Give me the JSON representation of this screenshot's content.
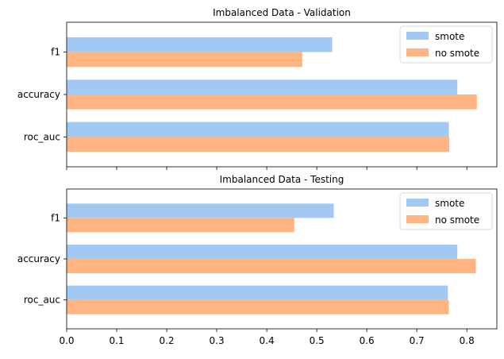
{
  "chart_data": [
    {
      "type": "bar",
      "orientation": "horizontal",
      "title": "Imbalanced Data - Validation",
      "categories": [
        "f1",
        "accuracy",
        "roc_auc"
      ],
      "series": [
        {
          "name": "smote",
          "values": [
            0.531,
            0.781,
            0.764
          ],
          "color": "#a1c9f4"
        },
        {
          "name": "no smote",
          "values": [
            0.471,
            0.82,
            0.765
          ],
          "color": "#ffb482"
        }
      ],
      "xlim": [
        0,
        0.86
      ],
      "xticks": [
        0.0,
        0.1,
        0.2,
        0.3,
        0.4,
        0.5,
        0.6,
        0.7,
        0.8
      ],
      "xtick_labels_visible": false,
      "legend": "top-right",
      "grid": false
    },
    {
      "type": "bar",
      "orientation": "horizontal",
      "title": "Imbalanced Data - Testing",
      "categories": [
        "f1",
        "accuracy",
        "roc_auc"
      ],
      "series": [
        {
          "name": "smote",
          "values": [
            0.534,
            0.781,
            0.762
          ],
          "color": "#a1c9f4"
        },
        {
          "name": "no smote",
          "values": [
            0.455,
            0.818,
            0.764
          ],
          "color": "#ffb482"
        }
      ],
      "xlim": [
        0,
        0.86
      ],
      "xticks": [
        0.0,
        0.1,
        0.2,
        0.3,
        0.4,
        0.5,
        0.6,
        0.7,
        0.8
      ],
      "xtick_labels": [
        "0.0",
        "0.1",
        "0.2",
        "0.3",
        "0.4",
        "0.5",
        "0.6",
        "0.7",
        "0.8"
      ],
      "xtick_labels_visible": true,
      "legend": "top-right",
      "grid": false
    }
  ]
}
